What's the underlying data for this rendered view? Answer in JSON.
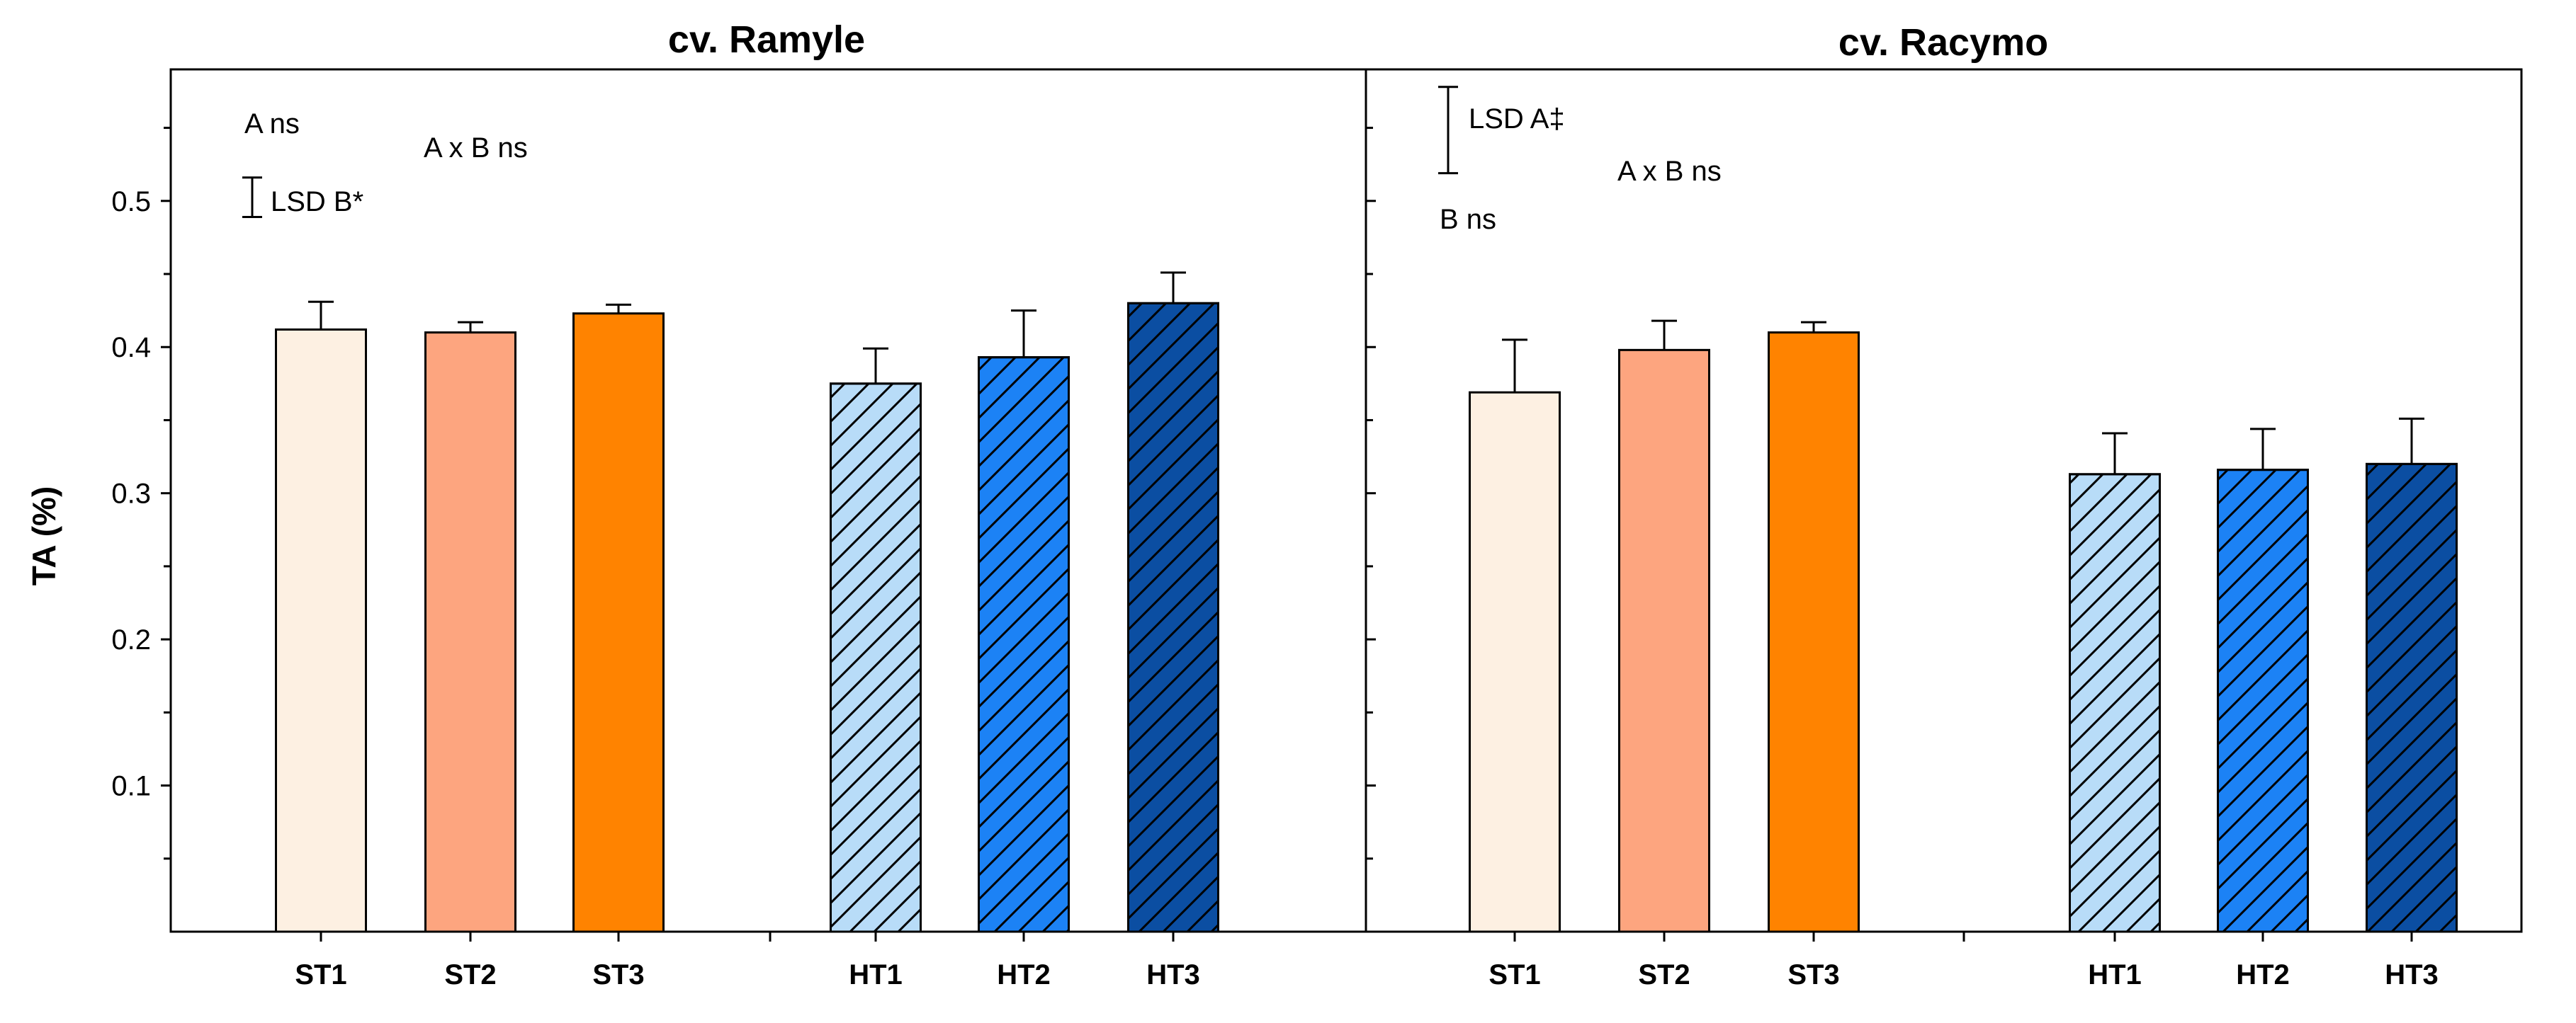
{
  "chart_data": {
    "type": "bar",
    "ylabel": "TA (%)",
    "ylim": [
      0,
      0.59
    ],
    "yticks": [
      0.1,
      0.2,
      0.3,
      0.4,
      0.5
    ],
    "categories": [
      "ST1",
      "ST2",
      "ST3",
      "HT1",
      "HT2",
      "HT3"
    ],
    "colors": {
      "ST1": "#fdf0e2",
      "ST2": "#fda57f",
      "ST3": "#ff8300",
      "HT1": "#b8dcf8",
      "HT2": "#1c82f5",
      "HT3": "#0b4ea2"
    },
    "hatched": [
      "HT1",
      "HT2",
      "HT3"
    ],
    "panels": [
      {
        "title": "cv. Ramyle",
        "values": [
          0.412,
          0.41,
          0.423,
          0.375,
          0.393,
          0.43
        ],
        "errors": [
          0.019,
          0.007,
          0.006,
          0.024,
          0.032,
          0.021
        ],
        "annotations": {
          "a": "A ns",
          "interaction": "A x B ns",
          "lsd": "LSD  B*",
          "lsd_range": [
            0.489,
            0.516
          ]
        }
      },
      {
        "title": "cv. Racymo",
        "values": [
          0.369,
          0.398,
          0.41,
          0.313,
          0.316,
          0.32
        ],
        "errors": [
          0.036,
          0.02,
          0.007,
          0.028,
          0.028,
          0.031
        ],
        "annotations": {
          "lsd": "LSD  A‡",
          "interaction": "A x B ns",
          "b": "B ns",
          "lsd_range": [
            0.519,
            0.578
          ]
        }
      }
    ]
  }
}
